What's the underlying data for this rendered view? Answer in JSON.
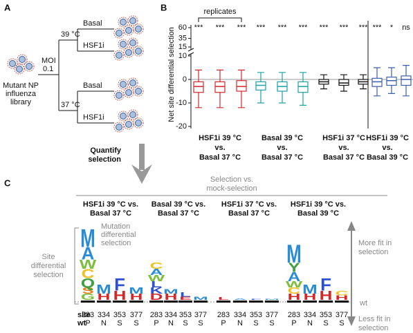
{
  "panelA": {
    "label": "A",
    "moi": "MOI",
    "moi_value": "0.1",
    "library": [
      "Mutant NP",
      "influenza",
      "library"
    ],
    "temps": [
      "39 °C",
      "37 °C"
    ],
    "conditions": [
      "Basal",
      "HSF1i",
      "Basal",
      "HSF1i"
    ]
  },
  "arrow_text": [
    "Quantify",
    "selection"
  ],
  "panelB": {
    "label": "B",
    "ylabel": "Net site differential selection",
    "replicates": "replicates",
    "ylim": [
      -20,
      10
    ],
    "yticks": [
      -20,
      -10,
      0,
      10
    ],
    "ylim_upper": [
      15,
      60
    ],
    "yticks_upper": [
      15,
      35,
      60
    ],
    "groups": [
      {
        "label": [
          "HSF1i 39 °C",
          "vs.",
          "Basal 37 °C"
        ],
        "color": "#d62728",
        "significance": [
          "***",
          "***",
          "***"
        ],
        "boxes": [
          {
            "whisker_low": -12,
            "q1": -5.5,
            "median": -3,
            "q3": -1,
            "whisker_high": 4
          },
          {
            "whisker_low": -12,
            "q1": -5.5,
            "median": -3,
            "q3": -1,
            "whisker_high": 4
          },
          {
            "whisker_low": -12,
            "q1": -5,
            "median": -3,
            "q3": -0.5,
            "whisker_high": 4
          }
        ]
      },
      {
        "label": [
          "Basal 39 °C",
          "vs.",
          "Basal 37 °C"
        ],
        "color": "#1aa3a3",
        "significance": [
          "***",
          "***",
          "***"
        ],
        "boxes": [
          {
            "whisker_low": -10,
            "q1": -4.5,
            "median": -2.5,
            "q3": -1,
            "whisker_high": 3
          },
          {
            "whisker_low": -10,
            "q1": -5,
            "median": -3,
            "q3": -1,
            "whisker_high": 3
          },
          {
            "whisker_low": -11,
            "q1": -5.5,
            "median": -3,
            "q3": -1,
            "whisker_high": 3
          }
        ]
      },
      {
        "label": [
          "HSF1i 37 °C",
          "vs.",
          "Basal 37 °C"
        ],
        "color": "#111111",
        "significance": [
          "***",
          "***",
          "***"
        ],
        "boxes": [
          {
            "whisker_low": -4,
            "q1": -2,
            "median": -1,
            "q3": 0,
            "whisker_high": 2
          },
          {
            "whisker_low": -5,
            "q1": -2.5,
            "median": -1.5,
            "q3": 0,
            "whisker_high": 2
          },
          {
            "whisker_low": -4,
            "q1": -2,
            "median": -1,
            "q3": 0,
            "whisker_high": 2
          }
        ]
      },
      {
        "label": [
          "HSF1i 39 °C",
          "vs.",
          "Basal 39 °C"
        ],
        "color": "#3a5fb0",
        "significance": [
          "***",
          "*",
          "ns"
        ],
        "boxes": [
          {
            "whisker_low": -7,
            "q1": -3,
            "median": -1,
            "q3": 0.5,
            "whisker_high": 5
          },
          {
            "whisker_low": -6,
            "q1": -2.5,
            "median": -0.5,
            "q3": 1,
            "whisker_high": 5
          },
          {
            "whisker_low": -7,
            "q1": -2.5,
            "median": 0,
            "q3": 1.5,
            "whisker_high": 6
          }
        ]
      }
    ]
  },
  "panelC": {
    "label": "C",
    "header": [
      "Selection vs.",
      "mock-selection"
    ],
    "site_label": [
      "Site",
      "differential",
      "selection"
    ],
    "mutation_label": [
      "Mutation",
      "differential",
      "selection"
    ],
    "more_fit": [
      "More fit in",
      "selection"
    ],
    "wt_line": "wt",
    "less_fit": [
      "Less fit in",
      "selection"
    ],
    "row_site": "site",
    "row_wt": "wt",
    "sites": [
      283,
      334,
      353,
      377
    ],
    "wt": [
      "P",
      "N",
      "S",
      "S"
    ],
    "columns": [
      {
        "title": [
          "HSF1i 39 °C vs.",
          "Basal 37 °C"
        ],
        "stacks": [
          [
            {
              "aa": "G",
              "h": 2,
              "color": "#7fbf3f"
            },
            {
              "aa": "S",
              "h": 2,
              "color": "#e88020"
            },
            {
              "aa": "Q",
              "h": 3,
              "color": "#3fa03f"
            },
            {
              "aa": "C",
              "h": 3,
              "color": "#f0c020"
            },
            {
              "aa": "W",
              "h": 3,
              "color": "#7fbf3f"
            },
            {
              "aa": "A",
              "h": 4,
              "color": "#2b8cd6"
            },
            {
              "aa": "M",
              "h": 6,
              "color": "#2b8cd6"
            }
          ],
          [
            {
              "aa": "H",
              "h": 2,
              "color": "#d62728"
            },
            {
              "aa": "M",
              "h": 3,
              "color": "#2b8cd6"
            }
          ],
          [
            {
              "aa": "H",
              "h": 3,
              "color": "#d62728"
            },
            {
              "aa": "F",
              "h": 4,
              "color": "#2b4fd6"
            }
          ],
          [
            {
              "aa": "H",
              "h": 2,
              "color": "#d62728"
            },
            {
              "aa": "M",
              "h": 2,
              "color": "#2b8cd6"
            }
          ]
        ]
      },
      {
        "title": [
          "Basal 39 °C vs.",
          "Basal 37 °C"
        ],
        "stacks": [
          [
            {
              "aa": "D",
              "h": 2,
              "color": "#d62728"
            },
            {
              "aa": "K",
              "h": 2,
              "color": "#2b4fd6"
            },
            {
              "aa": "L",
              "h": 2,
              "color": "#3355cc"
            },
            {
              "aa": "W",
              "h": 2,
              "color": "#7fbf3f"
            },
            {
              "aa": "A",
              "h": 2,
              "color": "#2b8cd6"
            },
            {
              "aa": "C",
              "h": 2,
              "color": "#f0c020"
            }
          ],
          [
            {
              "aa": "H",
              "h": 2,
              "color": "#d62728"
            },
            {
              "aa": "M",
              "h": 1.5,
              "color": "#2b8cd6"
            }
          ],
          [
            {
              "aa": "E",
              "h": 1,
              "color": "#d62728"
            },
            {
              "aa": "L",
              "h": 1.5,
              "color": "#3355cc"
            }
          ],
          [
            {
              "aa": "M",
              "h": 1,
              "color": "#2b8cd6"
            }
          ]
        ]
      },
      {
        "title": [
          "HSF1i 37 °C vs.",
          "Basal 37 °C"
        ],
        "stacks": [
          [
            {
              "aa": "L",
              "h": 0.8,
              "color": "#d62728"
            }
          ],
          [
            {
              "aa": "A",
              "h": 0.5,
              "color": "#2b8cd6"
            }
          ],
          [
            {
              "aa": "F",
              "h": 0.3,
              "color": "#2b4fd6"
            }
          ],
          [
            {
              "aa": "M",
              "h": 0.3,
              "color": "#2b8cd6"
            }
          ]
        ]
      },
      {
        "title": [
          "HSF1i 39 °C vs.",
          "Basal 39 °C"
        ],
        "stacks": [
          [
            {
              "aa": "H",
              "h": 2,
              "color": "#d62728"
            },
            {
              "aa": "C",
              "h": 2,
              "color": "#f0c020"
            },
            {
              "aa": "W",
              "h": 2,
              "color": "#7fbf3f"
            },
            {
              "aa": "A",
              "h": 3,
              "color": "#2b8cd6"
            },
            {
              "aa": "Y",
              "h": 3,
              "color": "#3fa03f"
            },
            {
              "aa": "M",
              "h": 6,
              "color": "#2b8cd6"
            }
          ],
          [
            {
              "aa": "H",
              "h": 2,
              "color": "#d62728"
            },
            {
              "aa": "M",
              "h": 3,
              "color": "#2b8cd6"
            }
          ],
          [
            {
              "aa": "H",
              "h": 3,
              "color": "#d62728"
            },
            {
              "aa": "F",
              "h": 4,
              "color": "#2b4fd6"
            }
          ],
          [
            {
              "aa": "H",
              "h": 1.5,
              "color": "#d62728"
            },
            {
              "aa": "C",
              "h": 1.5,
              "color": "#f0c020"
            }
          ]
        ]
      }
    ]
  }
}
